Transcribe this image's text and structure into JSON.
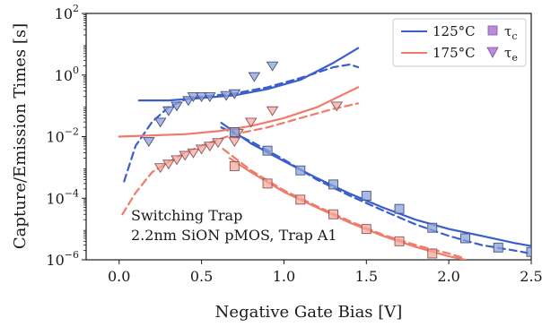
{
  "chart_data": {
    "type": "scatter",
    "xlabel": "Negative Gate Bias [V]",
    "ylabel": "Capture/Emission Times [s]",
    "x_scale": "linear",
    "y_scale": "log",
    "xlim": [
      -0.2,
      2.5
    ],
    "ylim": [
      1e-06,
      100
    ],
    "x_ticks": [
      0.0,
      0.5,
      1.0,
      1.5,
      2.0,
      2.5
    ],
    "x_tick_labels": [
      "0.0",
      "0.5",
      "1.0",
      "1.5",
      "2.0",
      "2.5"
    ],
    "y_ticks": [
      1e-06,
      0.0001,
      0.01,
      1,
      100
    ],
    "y_tick_labels": [
      {
        "base": "10",
        "exp": "−6"
      },
      {
        "base": "10",
        "exp": "−4"
      },
      {
        "base": "10",
        "exp": "−2"
      },
      {
        "base": "10",
        "exp": "0"
      },
      {
        "base": "10",
        "exp": "2"
      }
    ],
    "grid": false,
    "legend": {
      "placement": "top-right",
      "entries": [
        {
          "label": "125°C",
          "kind": "line",
          "color": "#3a5fcd"
        },
        {
          "label": "175°C",
          "kind": "line",
          "color": "#f07b6a"
        },
        {
          "label_base": "τ",
          "label_sub": "c",
          "kind": "square",
          "color": "#b98bd8"
        },
        {
          "label_base": "τ",
          "label_sub": "e",
          "kind": "triangle",
          "color": "#b98bd8"
        }
      ]
    },
    "annotation": [
      "Switching Trap",
      "2.2nm SiON pMOS, Trap A1"
    ],
    "colors": {
      "t125": "#3a5fcd",
      "t175": "#f07b6a",
      "marker_fill_125": "#8aa3dc",
      "marker_fill_175": "#f5aa9b"
    },
    "series": [
      {
        "temp": "125°C",
        "kind": "solid",
        "role": "emission",
        "points": [
          [
            0.12,
            0.15
          ],
          [
            0.3,
            0.15
          ],
          [
            0.5,
            0.18
          ],
          [
            0.7,
            0.22
          ],
          [
            0.9,
            0.35
          ],
          [
            1.1,
            0.7
          ],
          [
            1.3,
            2.5
          ],
          [
            1.45,
            7.5
          ]
        ]
      },
      {
        "temp": "125°C",
        "kind": "dashed",
        "role": "emission",
        "points": [
          [
            0.03,
            0.00035
          ],
          [
            0.1,
            0.005
          ],
          [
            0.2,
            0.03
          ],
          [
            0.3,
            0.09
          ],
          [
            0.4,
            0.16
          ],
          [
            0.5,
            0.2
          ],
          [
            0.7,
            0.25
          ],
          [
            0.9,
            0.4
          ],
          [
            1.1,
            0.8
          ],
          [
            1.3,
            1.8
          ],
          [
            1.4,
            2.2
          ],
          [
            1.45,
            1.8
          ]
        ]
      },
      {
        "temp": "125°C",
        "kind": "solid",
        "role": "capture",
        "points": [
          [
            0.62,
            0.028
          ],
          [
            0.8,
            0.006
          ],
          [
            1.0,
            0.0016
          ],
          [
            1.2,
            0.00045
          ],
          [
            1.4,
            0.00014
          ],
          [
            1.6,
            5e-05
          ],
          [
            1.8,
            2e-05
          ],
          [
            2.0,
            1e-05
          ],
          [
            2.2,
            6e-06
          ],
          [
            2.4,
            3.5e-06
          ],
          [
            2.5,
            2.8e-06
          ]
        ]
      },
      {
        "temp": "125°C",
        "kind": "dashed",
        "role": "capture",
        "points": [
          [
            0.62,
            0.02
          ],
          [
            0.8,
            0.007
          ],
          [
            1.0,
            0.0018
          ],
          [
            1.2,
            0.0004
          ],
          [
            1.4,
            0.00012
          ],
          [
            1.6,
            4e-05
          ],
          [
            1.8,
            1.4e-05
          ],
          [
            2.0,
            6e-06
          ],
          [
            2.2,
            3e-06
          ],
          [
            2.4,
            2e-06
          ],
          [
            2.5,
            1.6e-06
          ]
        ]
      },
      {
        "temp": "175°C",
        "kind": "solid",
        "role": "emission",
        "points": [
          [
            0.0,
            0.01
          ],
          [
            0.2,
            0.011
          ],
          [
            0.4,
            0.012
          ],
          [
            0.6,
            0.015
          ],
          [
            0.8,
            0.022
          ],
          [
            1.0,
            0.04
          ],
          [
            1.2,
            0.09
          ],
          [
            1.45,
            0.4
          ]
        ]
      },
      {
        "temp": "175°C",
        "kind": "dashed",
        "role": "emission",
        "points": [
          [
            0.02,
            3e-05
          ],
          [
            0.1,
            0.00015
          ],
          [
            0.2,
            0.0007
          ],
          [
            0.3,
            0.0015
          ],
          [
            0.4,
            0.003
          ],
          [
            0.5,
            0.005
          ],
          [
            0.6,
            0.008
          ],
          [
            0.7,
            0.012
          ],
          [
            0.9,
            0.02
          ],
          [
            1.1,
            0.04
          ],
          [
            1.3,
            0.08
          ],
          [
            1.45,
            0.12
          ]
        ]
      },
      {
        "temp": "175°C",
        "kind": "solid",
        "role": "capture",
        "points": [
          [
            0.67,
            0.002
          ],
          [
            0.8,
            0.0007
          ],
          [
            1.0,
            0.00016
          ],
          [
            1.2,
            5e-05
          ],
          [
            1.4,
            1.6e-05
          ],
          [
            1.6,
            6e-06
          ],
          [
            1.8,
            2.6e-06
          ],
          [
            2.0,
            1.3e-06
          ],
          [
            2.1,
            1e-06
          ]
        ]
      },
      {
        "temp": "175°C",
        "kind": "dashed",
        "role": "capture",
        "points": [
          [
            0.63,
            0.004
          ],
          [
            0.8,
            0.0008
          ],
          [
            1.0,
            0.00018
          ],
          [
            1.2,
            5.5e-05
          ],
          [
            1.4,
            1.8e-05
          ],
          [
            1.6,
            6.5e-06
          ],
          [
            1.8,
            3e-06
          ],
          [
            2.0,
            1.6e-06
          ],
          [
            2.1,
            1.1e-06
          ]
        ]
      }
    ],
    "markers": {
      "emission_125": [
        [
          0.18,
          0.007
        ],
        [
          0.25,
          0.03
        ],
        [
          0.3,
          0.07
        ],
        [
          0.35,
          0.1
        ],
        [
          0.42,
          0.15
        ],
        [
          0.45,
          0.2
        ],
        [
          0.5,
          0.2
        ],
        [
          0.55,
          0.2
        ],
        [
          0.65,
          0.22
        ],
        [
          0.7,
          0.25
        ],
        [
          0.82,
          0.9
        ],
        [
          0.93,
          2.0
        ]
      ],
      "emission_175": [
        [
          0.25,
          0.001
        ],
        [
          0.3,
          0.0013
        ],
        [
          0.35,
          0.0018
        ],
        [
          0.4,
          0.0025
        ],
        [
          0.45,
          0.003
        ],
        [
          0.5,
          0.004
        ],
        [
          0.55,
          0.005
        ],
        [
          0.6,
          0.0065
        ],
        [
          0.7,
          0.007
        ],
        [
          0.72,
          0.013
        ],
        [
          0.8,
          0.03
        ],
        [
          0.93,
          0.07
        ],
        [
          1.32,
          0.1
        ]
      ],
      "capture_125": [
        [
          0.7,
          0.014
        ],
        [
          0.9,
          0.0035
        ],
        [
          1.1,
          0.0008
        ],
        [
          1.3,
          0.00028
        ],
        [
          1.5,
          0.00012
        ],
        [
          1.7,
          4.5e-05
        ],
        [
          1.9,
          1.1e-05
        ],
        [
          2.1,
          5e-06
        ],
        [
          2.3,
          2.5e-06
        ],
        [
          2.5,
          1.8e-06
        ]
      ],
      "capture_175": [
        [
          0.7,
          0.0011
        ],
        [
          0.9,
          0.0003
        ],
        [
          1.1,
          9e-05
        ],
        [
          1.3,
          3e-05
        ],
        [
          1.5,
          1e-05
        ],
        [
          1.7,
          4e-06
        ],
        [
          1.9,
          1.6e-06
        ]
      ]
    }
  }
}
